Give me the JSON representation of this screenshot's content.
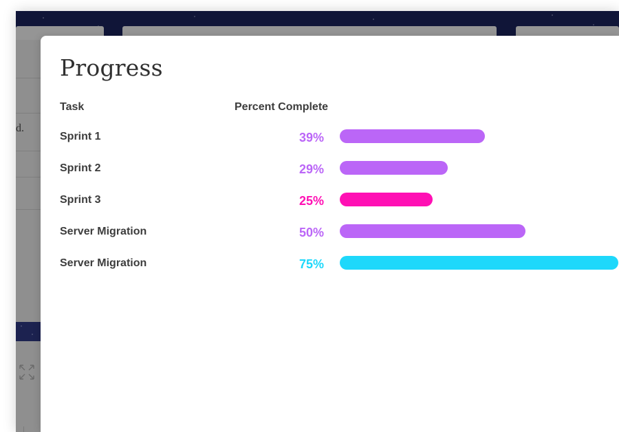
{
  "background": {
    "partial_text": "d."
  },
  "modal": {
    "title": "Progress",
    "columns": {
      "task": "Task",
      "percent": "Percent Complete"
    },
    "rows": [
      {
        "task": "Sprint 1",
        "percent_label": "39%",
        "percent": 39,
        "color": "#bb66f7"
      },
      {
        "task": "Sprint 2",
        "percent_label": "29%",
        "percent": 29,
        "color": "#bb66f7"
      },
      {
        "task": "Sprint 3",
        "percent_label": "25%",
        "percent": 25,
        "color": "#ff10b4"
      },
      {
        "task": "Server Migration",
        "percent_label": "50%",
        "percent": 50,
        "color": "#bb66f7"
      },
      {
        "task": "Server Migration",
        "percent_label": "75%",
        "percent": 75,
        "color": "#1ed8fb"
      }
    ]
  },
  "icons": {
    "expand": "expand-icon"
  }
}
